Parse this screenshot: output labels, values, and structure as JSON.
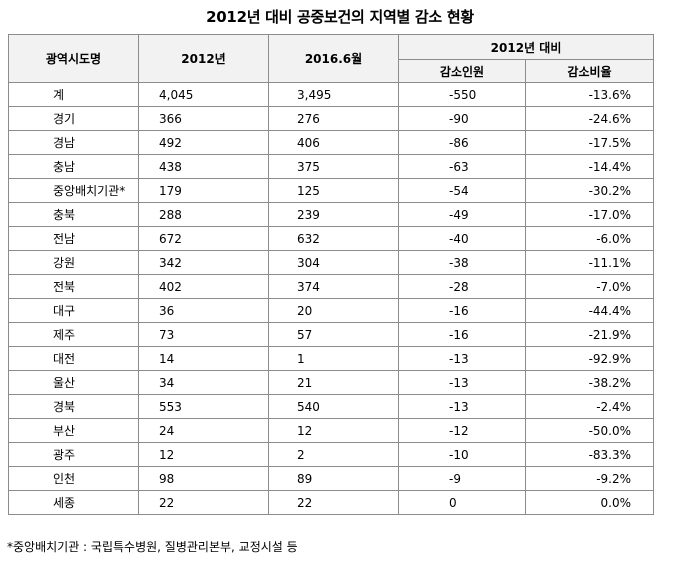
{
  "title": "2012년 대비 공중보건의 지역별 감소 현황",
  "table": {
    "headers": {
      "region": "광역시도명",
      "y2012": "2012년",
      "y2016": "2016.6월",
      "compare_group": "2012년 대비",
      "decrease_count": "감소인원",
      "decrease_rate": "감소비율"
    },
    "rows": [
      {
        "region": "계",
        "y2012": "4,045",
        "y2016": "3,495",
        "diff": "-550",
        "rate": "-13.6%"
      },
      {
        "region": "경기",
        "y2012": "366",
        "y2016": "276",
        "diff": "-90",
        "rate": "-24.6%"
      },
      {
        "region": "경남",
        "y2012": "492",
        "y2016": "406",
        "diff": "-86",
        "rate": "-17.5%"
      },
      {
        "region": "충남",
        "y2012": "438",
        "y2016": "375",
        "diff": "-63",
        "rate": "-14.4%"
      },
      {
        "region": "중앙배치기관*",
        "y2012": "179",
        "y2016": "125",
        "diff": "-54",
        "rate": "-30.2%"
      },
      {
        "region": "충북",
        "y2012": "288",
        "y2016": "239",
        "diff": "-49",
        "rate": "-17.0%"
      },
      {
        "region": "전남",
        "y2012": "672",
        "y2016": "632",
        "diff": "-40",
        "rate": "-6.0%"
      },
      {
        "region": "강원",
        "y2012": "342",
        "y2016": "304",
        "diff": "-38",
        "rate": "-11.1%"
      },
      {
        "region": "전북",
        "y2012": "402",
        "y2016": "374",
        "diff": "-28",
        "rate": "-7.0%"
      },
      {
        "region": "대구",
        "y2012": "36",
        "y2016": "20",
        "diff": "-16",
        "rate": "-44.4%"
      },
      {
        "region": "제주",
        "y2012": "73",
        "y2016": "57",
        "diff": "-16",
        "rate": "-21.9%"
      },
      {
        "region": "대전",
        "y2012": "14",
        "y2016": "1",
        "diff": "-13",
        "rate": "-92.9%"
      },
      {
        "region": "울산",
        "y2012": "34",
        "y2016": "21",
        "diff": "-13",
        "rate": "-38.2%"
      },
      {
        "region": "경북",
        "y2012": "553",
        "y2016": "540",
        "diff": "-13",
        "rate": "-2.4%"
      },
      {
        "region": "부산",
        "y2012": "24",
        "y2016": "12",
        "diff": "-12",
        "rate": "-50.0%"
      },
      {
        "region": "광주",
        "y2012": "12",
        "y2016": "2",
        "diff": "-10",
        "rate": "-83.3%"
      },
      {
        "region": "인천",
        "y2012": "98",
        "y2016": "89",
        "diff": "-9",
        "rate": "-9.2%"
      },
      {
        "region": "세종",
        "y2012": "22",
        "y2016": "22",
        "diff": "0",
        "rate": "0.0%"
      }
    ]
  },
  "footnote": "*중앙배치기관 : 국립특수병원, 질병관리본부, 교정시설 등"
}
